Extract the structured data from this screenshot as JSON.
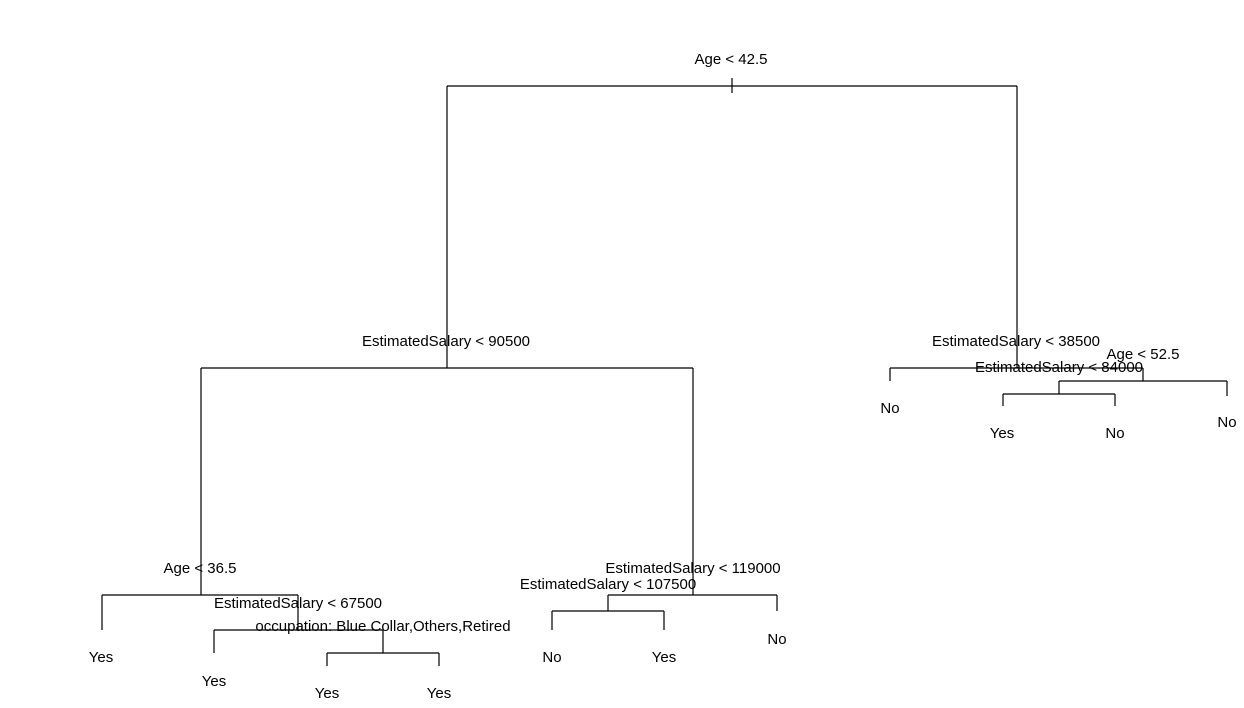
{
  "tree": {
    "splits": {
      "root": "Age < 42.5",
      "left": "EstimatedSalary < 90500",
      "right": "EstimatedSalary < 38500",
      "left_left": "Age < 36.5",
      "left_left_right": "EstimatedSalary < 67500",
      "left_left_right_right": "occupation: Blue Collar,Others,Retired",
      "left_right": "EstimatedSalary < 119000",
      "left_right_left": "EstimatedSalary < 107500",
      "right_right": "Age < 52.5",
      "right_right_left": "EstimatedSalary < 84000"
    },
    "leaves": {
      "l1": "Yes",
      "l2": "Yes",
      "l3": "Yes",
      "l4": "Yes",
      "l5": "No",
      "l6": "Yes",
      "l7": "No",
      "r1": "No",
      "r2": "Yes",
      "r3": "No",
      "r4": "No"
    }
  }
}
